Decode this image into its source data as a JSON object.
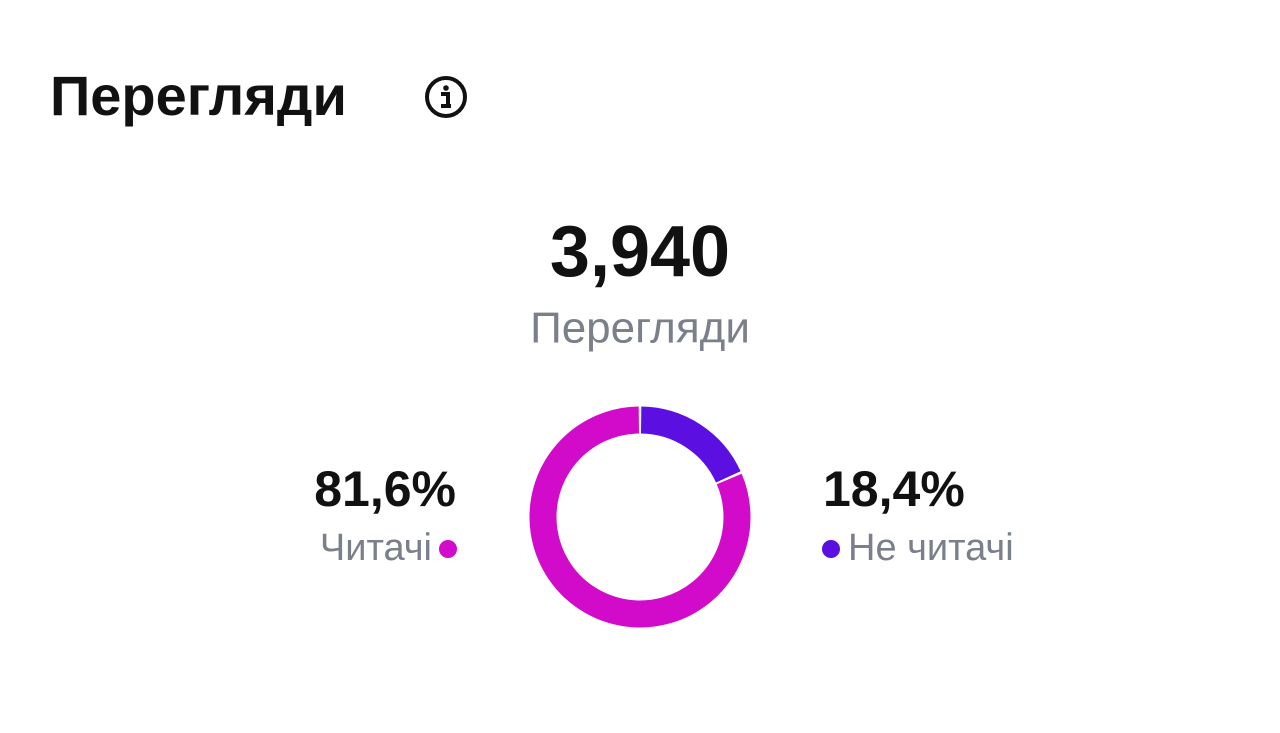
{
  "header": {
    "title": "Перегляди"
  },
  "chart_data": {
    "type": "donut",
    "total": {
      "value": 3940,
      "label": "3,940"
    },
    "total_caption": "Перегляди",
    "categories": [
      "Читачі",
      "Не читачі"
    ],
    "values": [
      81.6,
      18.4
    ],
    "value_labels": [
      "81,6%",
      "18,4%"
    ],
    "colors": [
      "#d20ac9",
      "#5b0fe0"
    ]
  }
}
